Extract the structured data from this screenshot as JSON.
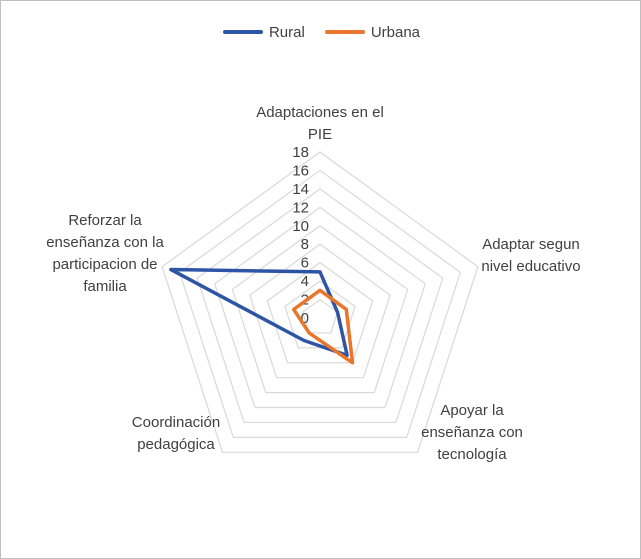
{
  "chart_data": {
    "type": "radar",
    "title": "",
    "categories": [
      [
        "Adaptaciones en el",
        "PIE"
      ],
      [
        "Adaptar segun",
        "nivel educativo"
      ],
      [
        "Apoyar la",
        "enseñanza con",
        "tecnología"
      ],
      [
        "Coordinación",
        "pedagógica"
      ],
      [
        "Reforzar la",
        "enseñanza con la",
        "participacion de",
        "familia"
      ]
    ],
    "r_ticks": [
      "0",
      "2",
      "4",
      "6",
      "8",
      "10",
      "12",
      "14",
      "16",
      "18"
    ],
    "r_min": 0,
    "r_max": 18,
    "legend_position": "top",
    "series": [
      {
        "name": "Rural",
        "color": "#2e55a5",
        "values": [
          5,
          2,
          5,
          3,
          17
        ]
      },
      {
        "name": "Urbana",
        "color": "#e8762b",
        "values": [
          3,
          3,
          6,
          2,
          3
        ]
      }
    ],
    "grid_color": "#d9d9d9"
  }
}
